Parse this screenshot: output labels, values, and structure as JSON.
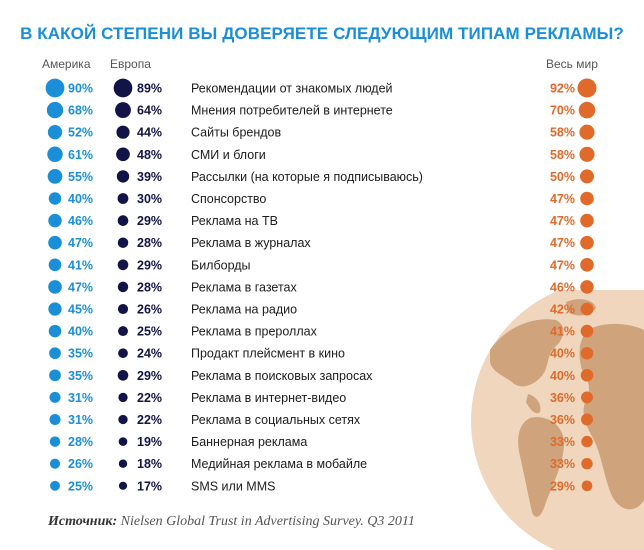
{
  "title": "В КАКОЙ СТЕПЕНИ ВЫ ДОВЕРЯЕТЕ СЛЕДУЮЩИМ ТИПАМ РЕКЛАМЫ?",
  "columns": {
    "america": "Америка",
    "europe": "Европа",
    "world": "Весь мир"
  },
  "source": {
    "label": "Источник:",
    "text": "Nielsen Global Trust in Advertising Survey. Q3 2011"
  },
  "colors": {
    "america": "#1a8fd8",
    "europe": "#121447",
    "world": "#e06a2a",
    "title": "#1a8fd8",
    "globe_land": "#c99b72",
    "globe_ocean": "#efd6bd"
  },
  "chart_data": {
    "type": "table",
    "title": "В КАКОЙ СТЕПЕНИ ВЫ ДОВЕРЯЕТЕ СЛЕДУЮЩИМ ТИПАМ РЕКЛАМЫ?",
    "unit": "%",
    "categories": [
      "Рекомендации от знакомых людей",
      "Мнения потребителей в интернете",
      "Сайты брендов",
      "СМИ и блоги",
      "Рассылки (на которые я подписываюсь)",
      "Спонсорство",
      "Реклама на ТВ",
      "Реклама в журналах",
      "Билборды",
      "Реклама в газетах",
      "Реклама на радио",
      "Реклама в прероллах",
      "Продакт плейсмент в кино",
      "Реклама в поисковых запросах",
      "Реклама в интернет-видео",
      "Реклама в социальных сетях",
      "Баннерная реклама",
      "Медийная реклама в мобайле",
      "SMS или MMS"
    ],
    "series": [
      {
        "name": "Америка",
        "values": [
          90,
          68,
          52,
          61,
          55,
          40,
          46,
          47,
          41,
          47,
          45,
          40,
          35,
          35,
          31,
          31,
          28,
          26,
          25
        ]
      },
      {
        "name": "Европа",
        "values": [
          89,
          64,
          44,
          48,
          39,
          30,
          29,
          28,
          29,
          28,
          26,
          25,
          24,
          29,
          22,
          22,
          19,
          18,
          17
        ]
      },
      {
        "name": "Весь мир",
        "values": [
          92,
          70,
          58,
          58,
          50,
          47,
          47,
          47,
          47,
          46,
          42,
          41,
          40,
          40,
          36,
          36,
          33,
          33,
          29
        ]
      }
    ]
  }
}
